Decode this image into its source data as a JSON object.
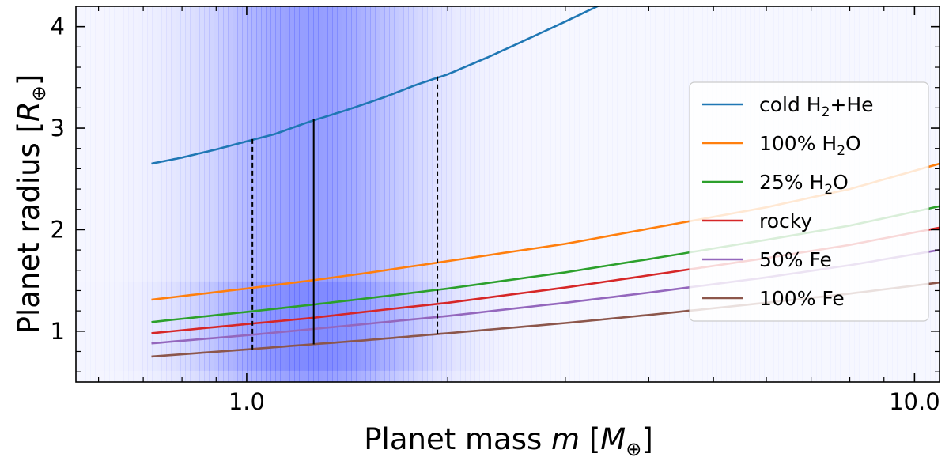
{
  "chart_data": {
    "type": "line",
    "xscale": "log",
    "xlim": [
      0.555,
      10.9
    ],
    "ylim": [
      0.5,
      4.2
    ],
    "xlabel": {
      "prefix": "Planet mass ",
      "var": "m",
      "bracket_open": " [",
      "unit": "M",
      "unit_sub": "⊕",
      "bracket_close": "]"
    },
    "ylabel": {
      "prefix": "Planet radius ",
      "bracket_open": "[",
      "unit": "R",
      "unit_sub": "⊕",
      "bracket_close": "]"
    },
    "x_ticks": [
      {
        "value": 1.0,
        "label": "1.0"
      },
      {
        "value": 10.0,
        "label": "10.0"
      }
    ],
    "y_ticks": [
      {
        "value": 1,
        "label": "1"
      },
      {
        "value": 2,
        "label": "2"
      },
      {
        "value": 3,
        "label": "3"
      },
      {
        "value": 4,
        "label": "4"
      }
    ],
    "shading": {
      "color": "#4f5dff",
      "mass_peak": 1.25,
      "mass_sigma_dex": 0.11,
      "radius_peak": 1.05,
      "radius_sigma": 0.22
    },
    "series": [
      {
        "name": "cold H2+He",
        "label_parts": [
          "cold H",
          "2",
          "+He"
        ],
        "color": "#1f77b4",
        "x": [
          0.72,
          0.8,
          0.9,
          1.0,
          1.1,
          1.25,
          1.4,
          1.6,
          1.8,
          2.0,
          2.3,
          2.6,
          3.0,
          3.4
        ],
        "y": [
          2.65,
          2.71,
          2.79,
          2.87,
          2.94,
          3.07,
          3.17,
          3.3,
          3.43,
          3.53,
          3.7,
          3.86,
          4.05,
          4.22
        ]
      },
      {
        "name": "100% H2O",
        "label_parts": [
          "100% H",
          "2",
          "O"
        ],
        "color": "#ff7f0e",
        "x": [
          0.72,
          1.0,
          1.25,
          1.5,
          2.0,
          3.0,
          4.0,
          6.0,
          8.0,
          10.9
        ],
        "y": [
          1.31,
          1.42,
          1.5,
          1.57,
          1.69,
          1.86,
          2.01,
          2.22,
          2.4,
          2.65
        ]
      },
      {
        "name": "25% H2O",
        "label_parts": [
          "25% H",
          "2",
          "O"
        ],
        "color": "#2ca02c",
        "x": [
          0.72,
          1.0,
          1.25,
          1.5,
          2.0,
          3.0,
          4.0,
          6.0,
          8.0,
          10.9
        ],
        "y": [
          1.09,
          1.19,
          1.26,
          1.32,
          1.42,
          1.58,
          1.71,
          1.9,
          2.04,
          2.23
        ]
      },
      {
        "name": "rocky",
        "label_parts": [
          "rocky"
        ],
        "color": "#d62728",
        "x": [
          0.72,
          1.0,
          1.25,
          1.5,
          2.0,
          3.0,
          4.0,
          6.0,
          8.0,
          10.9
        ],
        "y": [
          0.98,
          1.07,
          1.13,
          1.19,
          1.28,
          1.43,
          1.55,
          1.72,
          1.85,
          2.02
        ]
      },
      {
        "name": "50% Fe",
        "label_parts": [
          "50% Fe"
        ],
        "color": "#9467bd",
        "x": [
          0.72,
          1.0,
          1.25,
          1.5,
          2.0,
          3.0,
          4.0,
          6.0,
          8.0,
          10.9
        ],
        "y": [
          0.88,
          0.96,
          1.02,
          1.07,
          1.15,
          1.28,
          1.38,
          1.53,
          1.65,
          1.8
        ]
      },
      {
        "name": "100% Fe",
        "label_parts": [
          "100% Fe"
        ],
        "color": "#8c564b",
        "x": [
          0.72,
          1.0,
          1.25,
          1.5,
          2.0,
          3.0,
          4.0,
          6.0,
          8.0,
          10.9
        ],
        "y": [
          0.75,
          0.82,
          0.87,
          0.91,
          0.98,
          1.08,
          1.16,
          1.28,
          1.37,
          1.48
        ]
      }
    ],
    "vlines": [
      {
        "name": "lower",
        "x": 1.02,
        "y0": 0.82,
        "y1": 2.91,
        "style": "dashed"
      },
      {
        "name": "median",
        "x": 1.26,
        "y0": 0.87,
        "y1": 3.09,
        "style": "solid"
      },
      {
        "name": "upper",
        "x": 1.93,
        "y0": 0.97,
        "y1": 3.53,
        "style": "dashed"
      }
    ],
    "legend": {
      "location": "right"
    }
  }
}
